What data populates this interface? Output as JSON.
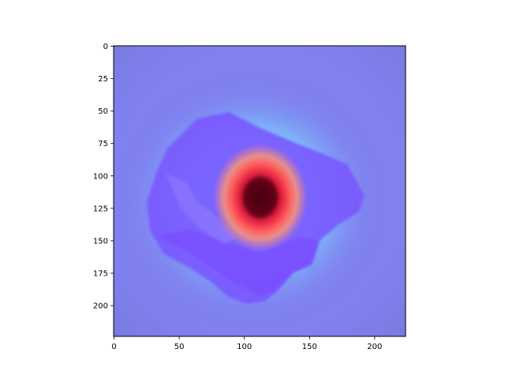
{
  "chart_data": {
    "type": "heatmap",
    "title": "",
    "xlabel": "",
    "ylabel": "",
    "image_width": 224,
    "image_height": 224,
    "xlim": [
      0,
      224
    ],
    "ylim": [
      224,
      0
    ],
    "x_ticks": [
      0,
      50,
      100,
      150,
      200
    ],
    "y_ticks": [
      0,
      25,
      50,
      75,
      100,
      125,
      150,
      175,
      200
    ],
    "grid": false,
    "legend": "none",
    "overlay": {
      "description": "heatmap overlay on photographed object",
      "hotspot_center": [
        112,
        120
      ],
      "colors": {
        "background": "#8080f0",
        "object": "#7a55ff",
        "cyan_halo": "#7ae4ff",
        "hot_red": "#ff4a50",
        "core": "#5a0010"
      }
    }
  }
}
